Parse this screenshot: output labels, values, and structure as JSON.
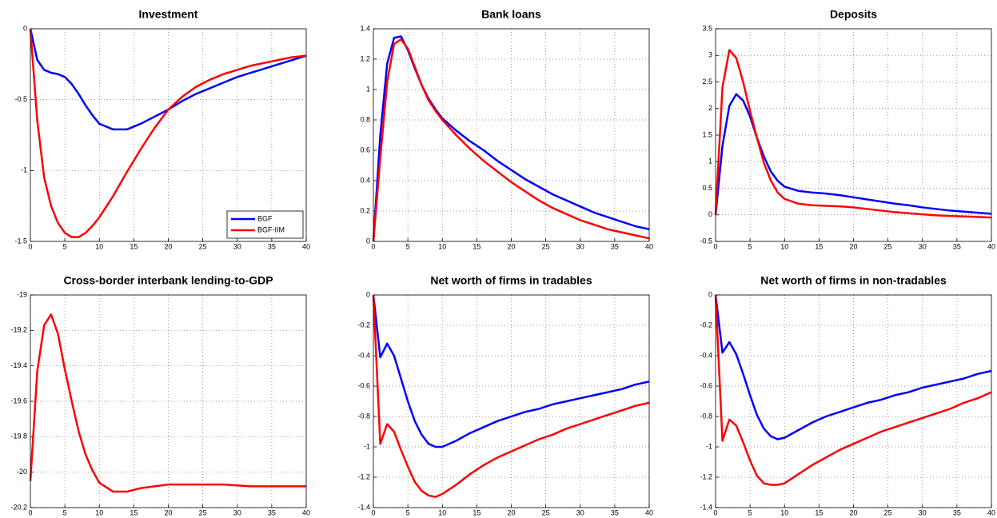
{
  "chart_data": [
    {
      "type": "line",
      "title": "Investment",
      "legend": "lower right",
      "grid": true,
      "x": [
        0,
        1,
        2,
        3,
        4,
        5,
        6,
        7,
        8,
        9,
        10,
        12,
        14,
        16,
        18,
        20,
        22,
        24,
        26,
        28,
        30,
        32,
        34,
        36,
        38,
        40
      ],
      "xlim": [
        0,
        40
      ],
      "xticks": [
        0,
        5,
        10,
        15,
        20,
        25,
        30,
        35,
        40
      ],
      "ylim": [
        -1.5,
        0
      ],
      "yticks": [
        -1.5,
        -1,
        -0.5,
        0
      ],
      "series": [
        {
          "name": "BGF",
          "color": "#0000ff",
          "values": [
            0,
            -0.22,
            -0.29,
            -0.31,
            -0.32,
            -0.34,
            -0.39,
            -0.46,
            -0.54,
            -0.61,
            -0.67,
            -0.71,
            -0.71,
            -0.67,
            -0.62,
            -0.57,
            -0.51,
            -0.46,
            -0.42,
            -0.38,
            -0.34,
            -0.31,
            -0.28,
            -0.25,
            -0.22,
            -0.19
          ]
        },
        {
          "name": "BGF-IIM",
          "color": "#ff0000",
          "values": [
            0,
            -0.65,
            -1.05,
            -1.25,
            -1.37,
            -1.44,
            -1.47,
            -1.47,
            -1.44,
            -1.39,
            -1.33,
            -1.18,
            -1.01,
            -0.85,
            -0.7,
            -0.57,
            -0.48,
            -0.41,
            -0.36,
            -0.32,
            -0.29,
            -0.26,
            -0.24,
            -0.22,
            -0.2,
            -0.19
          ]
        }
      ]
    },
    {
      "type": "line",
      "title": "Bank loans",
      "grid": true,
      "x": [
        0,
        1,
        2,
        3,
        4,
        5,
        6,
        7,
        8,
        9,
        10,
        12,
        14,
        16,
        18,
        20,
        22,
        24,
        26,
        28,
        30,
        32,
        34,
        36,
        38,
        40
      ],
      "xlim": [
        0,
        40
      ],
      "xticks": [
        0,
        5,
        10,
        15,
        20,
        25,
        30,
        35,
        40
      ],
      "ylim": [
        0,
        1.4
      ],
      "yticks": [
        0,
        0.2,
        0.4,
        0.6,
        0.8,
        1,
        1.2,
        1.4
      ],
      "series": [
        {
          "color": "#0000ff",
          "values": [
            0,
            0.7,
            1.17,
            1.34,
            1.35,
            1.26,
            1.14,
            1.03,
            0.94,
            0.87,
            0.81,
            0.73,
            0.66,
            0.6,
            0.53,
            0.47,
            0.41,
            0.36,
            0.31,
            0.27,
            0.23,
            0.19,
            0.16,
            0.13,
            0.1,
            0.08
          ]
        },
        {
          "color": "#ff0000",
          "values": [
            0,
            0.55,
            1.05,
            1.3,
            1.33,
            1.27,
            1.15,
            1.03,
            0.93,
            0.86,
            0.8,
            0.7,
            0.61,
            0.53,
            0.46,
            0.39,
            0.33,
            0.27,
            0.22,
            0.18,
            0.14,
            0.11,
            0.08,
            0.06,
            0.04,
            0.02
          ]
        }
      ]
    },
    {
      "type": "line",
      "title": "Deposits",
      "grid": true,
      "x": [
        0,
        1,
        2,
        3,
        4,
        5,
        6,
        7,
        8,
        9,
        10,
        12,
        14,
        16,
        18,
        20,
        22,
        24,
        26,
        28,
        30,
        32,
        34,
        36,
        38,
        40
      ],
      "xlim": [
        0,
        40
      ],
      "xticks": [
        0,
        5,
        10,
        15,
        20,
        25,
        30,
        35,
        40
      ],
      "ylim": [
        -0.5,
        3.5
      ],
      "yticks": [
        -0.5,
        0,
        0.5,
        1,
        1.5,
        2,
        2.5,
        3,
        3.5
      ],
      "series": [
        {
          "color": "#0000ff",
          "values": [
            0,
            1.3,
            2.05,
            2.27,
            2.15,
            1.85,
            1.45,
            1.1,
            0.82,
            0.64,
            0.53,
            0.45,
            0.42,
            0.4,
            0.37,
            0.33,
            0.29,
            0.25,
            0.21,
            0.18,
            0.14,
            0.11,
            0.08,
            0.06,
            0.04,
            0.02
          ]
        },
        {
          "color": "#ff0000",
          "values": [
            0,
            2.4,
            3.1,
            2.95,
            2.5,
            1.95,
            1.45,
            0.98,
            0.65,
            0.42,
            0.3,
            0.21,
            0.18,
            0.17,
            0.16,
            0.14,
            0.11,
            0.08,
            0.05,
            0.03,
            0.01,
            -0.01,
            -0.02,
            -0.03,
            -0.04,
            -0.05
          ]
        }
      ]
    },
    {
      "type": "line",
      "title": "Cross-border interbank lending-to-GDP",
      "grid": true,
      "x": [
        0,
        1,
        2,
        3,
        4,
        5,
        6,
        7,
        8,
        9,
        10,
        12,
        14,
        16,
        18,
        20,
        22,
        24,
        26,
        28,
        30,
        32,
        34,
        36,
        38,
        40
      ],
      "xlim": [
        0,
        40
      ],
      "xticks": [
        0,
        5,
        10,
        15,
        20,
        25,
        30,
        35,
        40
      ],
      "ylim": [
        -20.2,
        -19
      ],
      "yticks": [
        -20.2,
        -20,
        -19.8,
        -19.6,
        -19.4,
        -19.2,
        -19
      ],
      "series": [
        {
          "color": "#ff0000",
          "values": [
            -20.05,
            -19.43,
            -19.17,
            -19.11,
            -19.22,
            -19.42,
            -19.6,
            -19.77,
            -19.9,
            -19.99,
            -20.06,
            -20.11,
            -20.11,
            -20.09,
            -20.08,
            -20.07,
            -20.07,
            -20.07,
            -20.07,
            -20.07,
            -20.075,
            -20.08,
            -20.08,
            -20.08,
            -20.08,
            -20.08
          ]
        }
      ]
    },
    {
      "type": "line",
      "title": "Net worth of firms in tradables",
      "grid": true,
      "x": [
        0,
        1,
        2,
        3,
        4,
        5,
        6,
        7,
        8,
        9,
        10,
        12,
        14,
        16,
        18,
        20,
        22,
        24,
        26,
        28,
        30,
        32,
        34,
        36,
        38,
        40
      ],
      "xlim": [
        0,
        40
      ],
      "xticks": [
        0,
        5,
        10,
        15,
        20,
        25,
        30,
        35,
        40
      ],
      "ylim": [
        -1.4,
        0
      ],
      "yticks": [
        -1.4,
        -1.2,
        -1,
        -0.8,
        -0.6,
        -0.4,
        -0.2,
        0
      ],
      "series": [
        {
          "color": "#0000ff",
          "values": [
            0,
            -0.41,
            -0.32,
            -0.4,
            -0.55,
            -0.7,
            -0.83,
            -0.92,
            -0.98,
            -1,
            -1,
            -0.96,
            -0.91,
            -0.87,
            -0.83,
            -0.8,
            -0.77,
            -0.75,
            -0.72,
            -0.7,
            -0.68,
            -0.66,
            -0.64,
            -0.62,
            -0.59,
            -0.57
          ]
        },
        {
          "color": "#ff0000",
          "values": [
            0,
            -0.98,
            -0.85,
            -0.9,
            -1.02,
            -1.13,
            -1.23,
            -1.29,
            -1.32,
            -1.33,
            -1.31,
            -1.25,
            -1.18,
            -1.12,
            -1.07,
            -1.03,
            -0.99,
            -0.95,
            -0.92,
            -0.88,
            -0.85,
            -0.82,
            -0.79,
            -0.76,
            -0.73,
            -0.71
          ]
        }
      ]
    },
    {
      "type": "line",
      "title": "Net worth of firms in non-tradables",
      "grid": true,
      "x": [
        0,
        1,
        2,
        3,
        4,
        5,
        6,
        7,
        8,
        9,
        10,
        12,
        14,
        16,
        18,
        20,
        22,
        24,
        26,
        28,
        30,
        32,
        34,
        36,
        38,
        40
      ],
      "xlim": [
        0,
        40
      ],
      "xticks": [
        0,
        5,
        10,
        15,
        20,
        25,
        30,
        35,
        40
      ],
      "ylim": [
        -1.4,
        0
      ],
      "yticks": [
        -1.4,
        -1.2,
        -1,
        -0.8,
        -0.6,
        -0.4,
        -0.2,
        0
      ],
      "series": [
        {
          "color": "#0000ff",
          "values": [
            0,
            -0.38,
            -0.31,
            -0.39,
            -0.52,
            -0.66,
            -0.79,
            -0.88,
            -0.93,
            -0.95,
            -0.94,
            -0.89,
            -0.84,
            -0.8,
            -0.77,
            -0.74,
            -0.71,
            -0.69,
            -0.66,
            -0.64,
            -0.61,
            -0.59,
            -0.57,
            -0.55,
            -0.52,
            -0.5
          ]
        },
        {
          "color": "#ff0000",
          "values": [
            0,
            -0.96,
            -0.82,
            -0.86,
            -0.97,
            -1.09,
            -1.19,
            -1.24,
            -1.25,
            -1.25,
            -1.24,
            -1.18,
            -1.12,
            -1.07,
            -1.02,
            -0.98,
            -0.94,
            -0.9,
            -0.87,
            -0.84,
            -0.81,
            -0.78,
            -0.75,
            -0.71,
            -0.68,
            -0.64
          ]
        }
      ]
    }
  ]
}
